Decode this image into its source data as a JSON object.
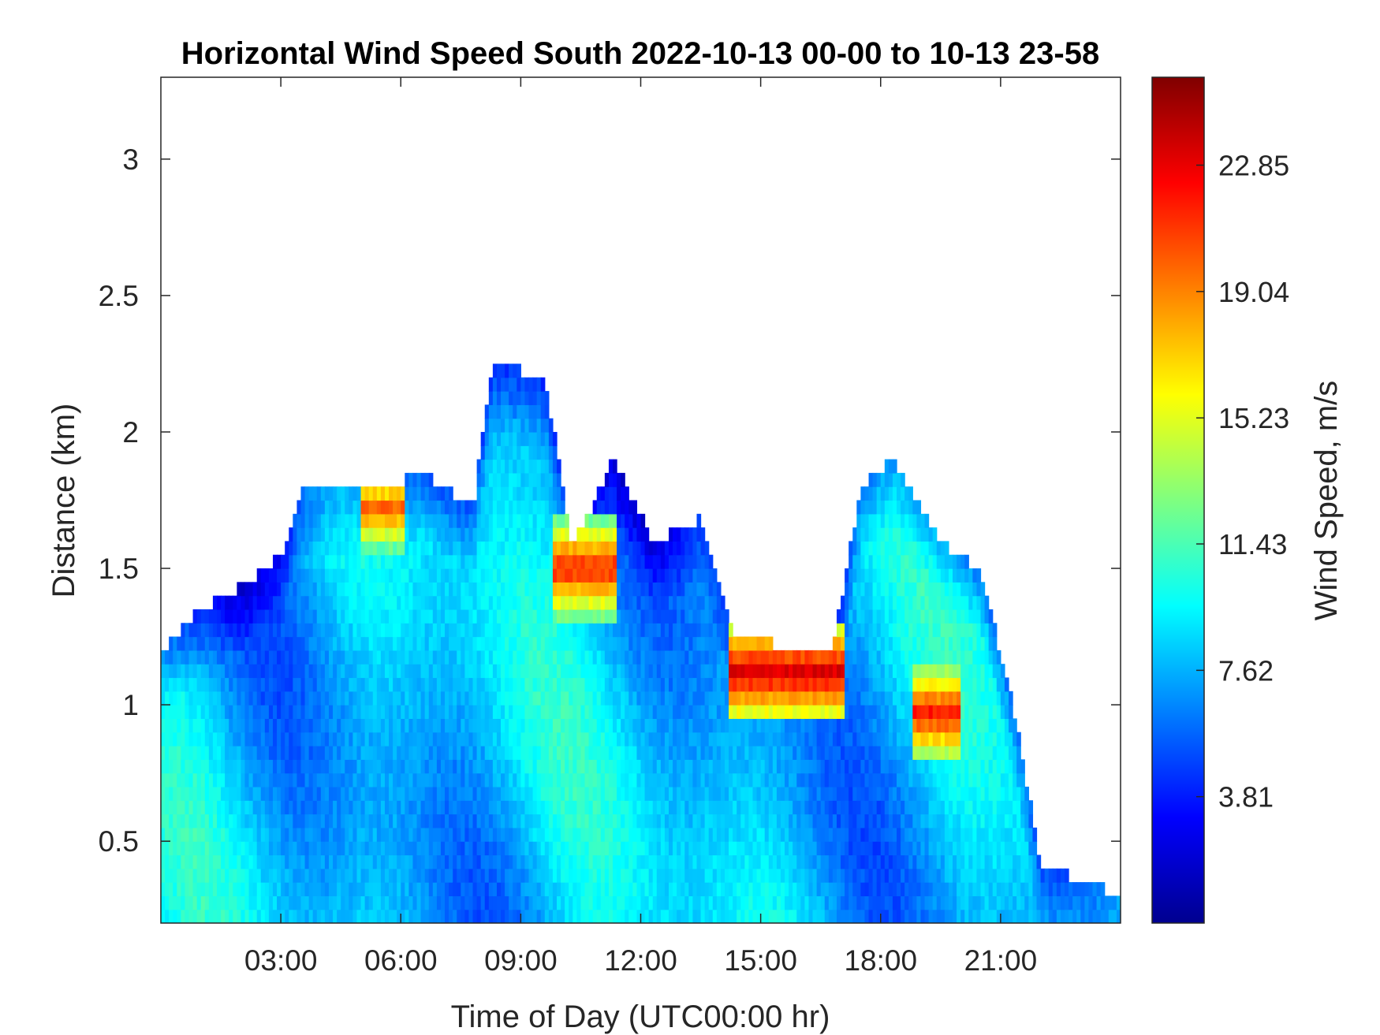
{
  "chart_data": {
    "type": "heatmap",
    "title": "Horizontal Wind Speed South 2022-10-13 00-00 to 10-13 23-58",
    "xlabel": "Time of Day (UTC00:00 hr)",
    "ylabel": "Distance (km)",
    "xlim_hours": [
      0,
      24
    ],
    "ylim_km": [
      0.2,
      3.3
    ],
    "x_ticks": [
      {
        "hour": 3,
        "label": "03:00"
      },
      {
        "hour": 6,
        "label": "06:00"
      },
      {
        "hour": 9,
        "label": "09:00"
      },
      {
        "hour": 12,
        "label": "12:00"
      },
      {
        "hour": 15,
        "label": "15:00"
      },
      {
        "hour": 18,
        "label": "18:00"
      },
      {
        "hour": 21,
        "label": "21:00"
      }
    ],
    "y_ticks": [
      {
        "value": 0.5,
        "label": "0.5"
      },
      {
        "value": 1,
        "label": "1"
      },
      {
        "value": 1.5,
        "label": "1.5"
      },
      {
        "value": 2,
        "label": "2"
      },
      {
        "value": 2.5,
        "label": "2.5"
      },
      {
        "value": 3,
        "label": "3"
      }
    ],
    "colorbar": {
      "label": "Wind Speed, m/s",
      "range": [
        0,
        25.5
      ],
      "ticks": [
        {
          "value": 3.81,
          "label": "3.81"
        },
        {
          "value": 7.62,
          "label": "7.62"
        },
        {
          "value": 11.43,
          "label": "11.43"
        },
        {
          "value": 15.23,
          "label": "15.23"
        },
        {
          "value": 19.04,
          "label": "19.04"
        },
        {
          "value": 22.85,
          "label": "22.85"
        }
      ],
      "colormap": "jet"
    },
    "approx_data_top_km": [
      {
        "hour": 0.0,
        "top": 1.2
      },
      {
        "hour": 1.0,
        "top": 1.35
      },
      {
        "hour": 2.0,
        "top": 1.43
      },
      {
        "hour": 3.0,
        "top": 1.55
      },
      {
        "hour": 3.5,
        "top": 1.78
      },
      {
        "hour": 4.5,
        "top": 1.8
      },
      {
        "hour": 5.5,
        "top": 1.78
      },
      {
        "hour": 6.5,
        "top": 1.86
      },
      {
        "hour": 7.8,
        "top": 1.72
      },
      {
        "hour": 8.3,
        "top": 2.25
      },
      {
        "hour": 9.6,
        "top": 2.2
      },
      {
        "hour": 10.3,
        "top": 1.58
      },
      {
        "hour": 11.3,
        "top": 1.9
      },
      {
        "hour": 12.3,
        "top": 1.6
      },
      {
        "hour": 13.5,
        "top": 1.68
      },
      {
        "hour": 14.4,
        "top": 1.25
      },
      {
        "hour": 15.5,
        "top": 1.22
      },
      {
        "hour": 16.8,
        "top": 1.2
      },
      {
        "hour": 17.5,
        "top": 1.8
      },
      {
        "hour": 18.3,
        "top": 1.9
      },
      {
        "hour": 19.5,
        "top": 1.6
      },
      {
        "hour": 20.5,
        "top": 1.5
      },
      {
        "hour": 21.3,
        "top": 1.0
      },
      {
        "hour": 22.0,
        "top": 0.42
      },
      {
        "hour": 24.0,
        "top": 0.3
      }
    ],
    "features": [
      {
        "hour_start": 10.0,
        "hour_end": 11.2,
        "height_km": 1.5,
        "wind_speed": 22,
        "note": "jet maximum"
      },
      {
        "hour_start": 14.4,
        "hour_end": 16.9,
        "height_km": 1.12,
        "wind_speed": 23.5,
        "note": "jet maximum"
      },
      {
        "hour_start": 5.2,
        "hour_end": 5.9,
        "height_km": 1.72,
        "wind_speed": 20,
        "note": "jet maximum"
      },
      {
        "hour_start": 19.0,
        "hour_end": 19.8,
        "height_km": 0.97,
        "wind_speed": 22,
        "note": "jet maximum"
      }
    ]
  }
}
